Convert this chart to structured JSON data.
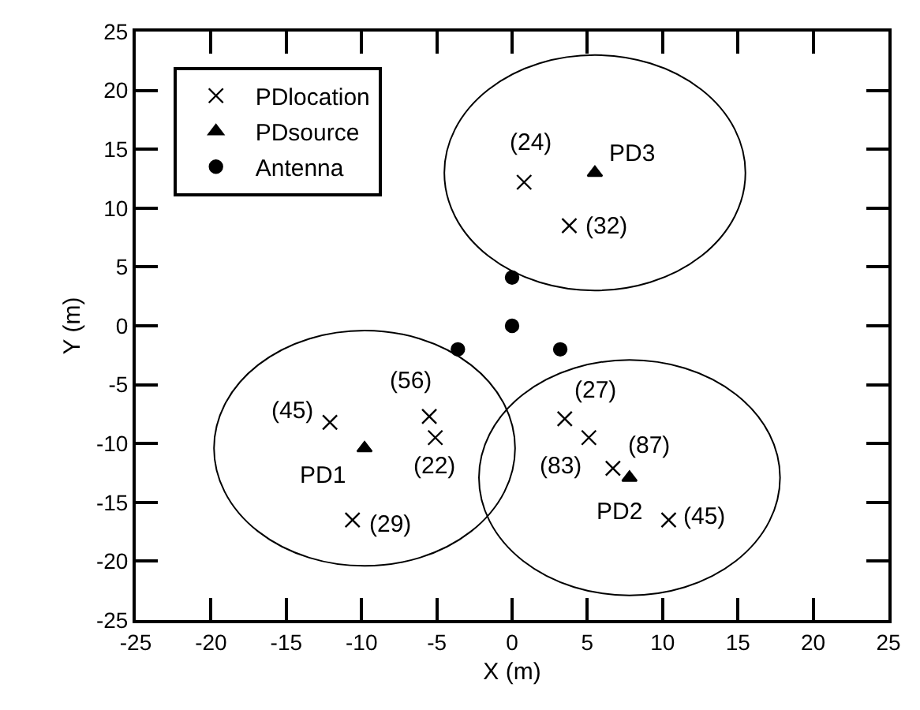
{
  "chart_data": {
    "type": "scatter",
    "xlabel": "X (m)",
    "ylabel": "Y (m)",
    "xlim": [
      -25,
      25
    ],
    "xticks": [
      -25,
      -20,
      -15,
      -10,
      -5,
      0,
      5,
      10,
      15,
      20,
      25
    ],
    "ylim": [
      -25,
      25
    ],
    "yticks": [
      -25,
      -20,
      -15,
      -10,
      -5,
      0,
      5,
      10,
      15,
      20,
      25
    ],
    "grid": false,
    "legend": "top left",
    "series": [
      {
        "name": "PDlocation",
        "color": "#000000",
        "marker": "cross",
        "x": [
          0.8,
          3.8,
          -12.1,
          -5.5,
          -5.1,
          -10.6,
          3.5,
          5.1,
          6.7,
          10.4
        ],
        "values": [
          12.2,
          8.5,
          -8.2,
          -7.7,
          -9.5,
          -16.5,
          -7.9,
          -9.5,
          -12.1,
          -16.5
        ]
      },
      {
        "name": "PDsource",
        "color": "#000000",
        "marker": "triangle",
        "x": [
          5.5,
          -9.8,
          7.8
        ],
        "values": [
          13.0,
          -10.4,
          -12.9
        ]
      },
      {
        "name": "Antenna",
        "color": "#000000",
        "marker": "circle",
        "x": [
          0,
          0,
          -3.6,
          3.2
        ],
        "values": [
          4.1,
          0,
          -2,
          -2
        ]
      }
    ],
    "annotations": [
      {
        "text": "(24)",
        "x": 0.8,
        "y": 12.2
      },
      {
        "text": "PD3",
        "x": 5.5,
        "y": 13.0
      },
      {
        "text": "(32)",
        "x": 3.8,
        "y": 8.5
      },
      {
        "text": "(56)",
        "x": -5.5,
        "y": -7.7
      },
      {
        "text": "(45)",
        "x": -12.1,
        "y": -8.2
      },
      {
        "text": "(22)",
        "x": -5.1,
        "y": -9.5
      },
      {
        "text": "PD1",
        "x": -9.8,
        "y": -10.4
      },
      {
        "text": "(29)",
        "x": -10.6,
        "y": -16.5
      },
      {
        "text": "(27)",
        "x": 3.5,
        "y": -7.9
      },
      {
        "text": "(87)",
        "x": 5.1,
        "y": -9.5
      },
      {
        "text": "(83)",
        "x": 6.7,
        "y": -12.1
      },
      {
        "text": "PD2",
        "x": 7.8,
        "y": -12.9
      },
      {
        "text": "(45)",
        "x": 10.4,
        "y": -16.5
      }
    ]
  }
}
